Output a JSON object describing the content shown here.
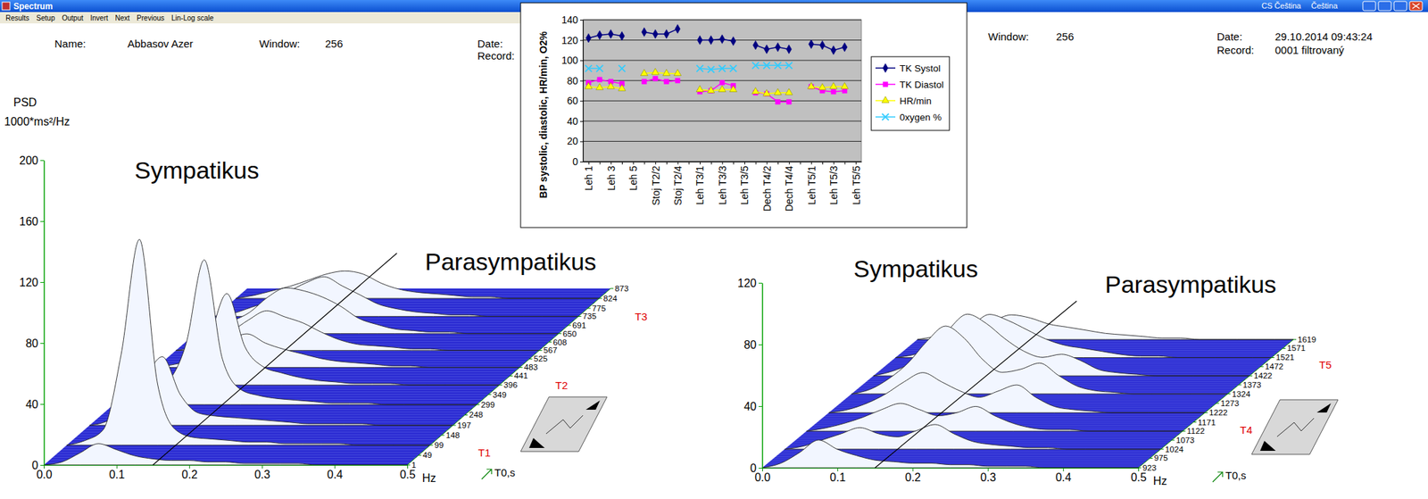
{
  "window": {
    "title": "Spectrum",
    "menu": [
      "Results",
      "Setup",
      "Output",
      "Invert",
      "Next",
      "Previous",
      "Lin-Log scale"
    ],
    "languages": [
      "CS Čeština",
      "Čeština"
    ],
    "panels": [
      {
        "name_label": "Name:",
        "name": "Abbasov Azer",
        "window_label": "Window:",
        "window": 256,
        "date_label": "Date:",
        "record_label": "Record:"
      },
      {
        "window_label": "Window:",
        "window": 256,
        "date_label": "Date:",
        "date": "29.10.2014 09:43:24",
        "record_label": "Record:",
        "record": "0001 filtrovaný"
      }
    ]
  },
  "chart_data": [
    {
      "type": "waterfall",
      "annotations": [
        "Sympatikus",
        "Parasympatikus"
      ],
      "ylabel": "PSD",
      "yunit": "1000*ms²/Hz",
      "xlabel": "Hz",
      "zlabel": "T0,s",
      "band_boundary": 0.15,
      "x": [
        0,
        0.025,
        0.05,
        0.075,
        0.1,
        0.125,
        0.15,
        0.175,
        0.2,
        0.225,
        0.25,
        0.275,
        0.3,
        0.325,
        0.35,
        0.375,
        0.4,
        0.425,
        0.45,
        0.475,
        0.5
      ],
      "xlim": [
        0,
        0.5
      ],
      "xticks": [
        {
          "value": 0,
          "label": "0.0"
        },
        0.1,
        0.2,
        0.3,
        0.4,
        0.5
      ],
      "ylim": [
        0,
        200
      ],
      "yticks": [
        0,
        40,
        80,
        120,
        160,
        200
      ],
      "zlim": [
        1,
        873
      ],
      "zticks": [
        1,
        49,
        99,
        148,
        197,
        248,
        299,
        349,
        396,
        441,
        483,
        525,
        567,
        608,
        650,
        691,
        735,
        775,
        824,
        873
      ],
      "phases": [
        {
          "label": "T1",
          "z": 62
        },
        {
          "label": "T2",
          "z": 393
        },
        {
          "label": "T3",
          "z": 734
        }
      ],
      "series": [
        {
          "z": 1,
          "values": [
            0,
            2,
            8,
            14,
            10,
            6,
            4,
            3,
            3,
            2,
            2,
            1,
            1,
            1,
            1,
            0,
            0,
            0,
            0,
            0,
            0
          ]
        },
        {
          "z": 99,
          "values": [
            0,
            3,
            10,
            60,
            135,
            40,
            10,
            5,
            4,
            3,
            2,
            2,
            1,
            1,
            1,
            1,
            0,
            0,
            0,
            0,
            0
          ]
        },
        {
          "z": 197,
          "values": [
            0,
            3,
            12,
            30,
            45,
            20,
            8,
            6,
            5,
            4,
            3,
            2,
            1,
            1,
            1,
            1,
            0,
            0,
            0,
            0,
            0
          ]
        },
        {
          "z": 299,
          "values": [
            0,
            2,
            8,
            15,
            40,
            95,
            30,
            10,
            6,
            4,
            3,
            2,
            1,
            1,
            1,
            0,
            0,
            0,
            0,
            0,
            0
          ]
        },
        {
          "z": 396,
          "values": [
            0,
            2,
            6,
            12,
            30,
            60,
            25,
            12,
            8,
            5,
            3,
            2,
            1,
            1,
            1,
            0,
            0,
            0,
            0,
            0,
            0
          ]
        },
        {
          "z": 483,
          "values": [
            0,
            2,
            5,
            10,
            18,
            22,
            16,
            12,
            9,
            6,
            4,
            3,
            2,
            1,
            1,
            0,
            0,
            0,
            0,
            0,
            0
          ]
        },
        {
          "z": 567,
          "values": [
            0,
            2,
            6,
            12,
            20,
            26,
            22,
            18,
            12,
            7,
            4,
            3,
            2,
            1,
            1,
            0,
            0,
            0,
            0,
            0,
            0
          ]
        },
        {
          "z": 650,
          "values": [
            0,
            3,
            8,
            14,
            24,
            30,
            28,
            24,
            18,
            10,
            6,
            3,
            2,
            1,
            1,
            0,
            0,
            0,
            0,
            0,
            0
          ]
        },
        {
          "z": 735,
          "values": [
            0,
            2,
            6,
            10,
            16,
            22,
            26,
            20,
            14,
            8,
            5,
            3,
            2,
            1,
            1,
            0,
            0,
            0,
            0,
            0,
            0
          ]
        },
        {
          "z": 824,
          "values": [
            0,
            2,
            5,
            8,
            12,
            16,
            18,
            16,
            10,
            6,
            4,
            3,
            2,
            1,
            1,
            0,
            0,
            0,
            0,
            0,
            0
          ]
        }
      ]
    },
    {
      "type": "waterfall",
      "annotations": [
        "Sympatikus",
        "Parasympatikus"
      ],
      "xlabel": "Hz",
      "zlabel": "T0,s",
      "band_boundary": 0.15,
      "x": [
        0,
        0.025,
        0.05,
        0.075,
        0.1,
        0.125,
        0.15,
        0.175,
        0.2,
        0.225,
        0.25,
        0.275,
        0.3,
        0.325,
        0.35,
        0.375,
        0.4,
        0.425,
        0.45,
        0.475,
        0.5
      ],
      "xlim": [
        0,
        0.5
      ],
      "xticks": [
        {
          "value": 0,
          "label": "0.0"
        },
        0.1,
        0.2,
        0.3,
        0.4,
        0.5
      ],
      "ylim": [
        0,
        120
      ],
      "yticks": [
        0,
        40,
        80,
        120
      ],
      "zlim": [
        923,
        1619
      ],
      "zticks": [
        923,
        975,
        1024,
        1073,
        1122,
        1171,
        1222,
        1273,
        1324,
        1373,
        1422,
        1472,
        1521,
        1571,
        1619
      ],
      "phases": [
        {
          "label": "T4",
          "z": 1125
        },
        {
          "label": "T5",
          "z": 1480
        }
      ],
      "series": [
        {
          "z": 923,
          "values": [
            0,
            3,
            10,
            18,
            12,
            8,
            5,
            4,
            3,
            3,
            2,
            2,
            1,
            1,
            1,
            0,
            0,
            0,
            0,
            0,
            0
          ]
        },
        {
          "z": 1024,
          "values": [
            0,
            2,
            6,
            10,
            14,
            10,
            8,
            12,
            16,
            10,
            5,
            3,
            2,
            1,
            1,
            0,
            0,
            0,
            0,
            0,
            0
          ]
        },
        {
          "z": 1122,
          "values": [
            0,
            2,
            5,
            9,
            14,
            18,
            14,
            10,
            12,
            16,
            10,
            5,
            2,
            1,
            1,
            0,
            0,
            0,
            0,
            0,
            0
          ]
        },
        {
          "z": 1222,
          "values": [
            0,
            2,
            6,
            12,
            20,
            26,
            20,
            14,
            10,
            14,
            18,
            10,
            4,
            2,
            1,
            0,
            0,
            0,
            0,
            0,
            0
          ]
        },
        {
          "z": 1324,
          "values": [
            0,
            3,
            10,
            20,
            34,
            44,
            36,
            22,
            14,
            16,
            20,
            12,
            5,
            2,
            1,
            0,
            0,
            0,
            0,
            0,
            0
          ]
        },
        {
          "z": 1422,
          "values": [
            0,
            3,
            8,
            16,
            30,
            40,
            34,
            24,
            16,
            12,
            14,
            10,
            4,
            2,
            1,
            0,
            0,
            0,
            0,
            0,
            0
          ]
        },
        {
          "z": 1521,
          "values": [
            0,
            2,
            6,
            12,
            20,
            28,
            24,
            18,
            12,
            8,
            6,
            4,
            2,
            1,
            1,
            0,
            0,
            0,
            0,
            0,
            0
          ]
        },
        {
          "z": 1619,
          "values": [
            0,
            2,
            4,
            8,
            12,
            16,
            14,
            10,
            8,
            6,
            4,
            3,
            2,
            1,
            1,
            0,
            0,
            0,
            0,
            0,
            0
          ]
        }
      ]
    },
    {
      "type": "line",
      "ylabel": "BP systolic, diastolic, HR/min, O2%",
      "categories": [
        "Leh 1",
        null,
        "Leh 3",
        null,
        "Leh 5",
        null,
        "Stoj T2/2",
        null,
        "Stoj T2/4",
        null,
        "Leh T3/1",
        null,
        "Leh T3/3",
        null,
        "Leh T3/5",
        null,
        "Dech T4/2",
        null,
        "Dech T4/4",
        null,
        "Leh T5/1",
        null,
        "Leh T5/3",
        null,
        "Leh T5/5"
      ],
      "ylim": [
        0,
        140
      ],
      "yticks": [
        0,
        20,
        40,
        60,
        80,
        100,
        120,
        140
      ],
      "grid": true,
      "legend": "right",
      "series": [
        {
          "name": "TK Systol",
          "color": "#000080",
          "marker": "diamond",
          "values": [
            122,
            125,
            126,
            124,
            null,
            128,
            126,
            126,
            131,
            null,
            120,
            120,
            121,
            119,
            null,
            115,
            111,
            113,
            111,
            null,
            116,
            115,
            110,
            113,
            null
          ]
        },
        {
          "name": "TK Diastol",
          "color": "#ff00ff",
          "marker": "square",
          "values": [
            78,
            81,
            79,
            77,
            null,
            79,
            82,
            79,
            80,
            null,
            69,
            70,
            78,
            75,
            null,
            68,
            67,
            59,
            59,
            null,
            74,
            70,
            69,
            70,
            null
          ]
        },
        {
          "name": "HR/min",
          "color": "#ffff00",
          "marker": "triangle",
          "values": [
            74,
            73,
            74,
            72,
            null,
            87,
            88,
            87,
            87,
            null,
            71,
            70,
            71,
            71,
            null,
            69,
            67,
            68,
            68,
            null,
            74,
            73,
            74,
            74,
            null
          ]
        },
        {
          "name": "0xygen %",
          "color": "#33ccff",
          "marker": "x",
          "values": [
            92,
            92,
            null,
            92,
            null,
            null,
            null,
            null,
            null,
            null,
            92,
            91,
            92,
            92,
            null,
            95,
            95,
            95,
            95,
            null,
            null,
            null,
            null,
            null,
            null
          ]
        }
      ]
    }
  ]
}
